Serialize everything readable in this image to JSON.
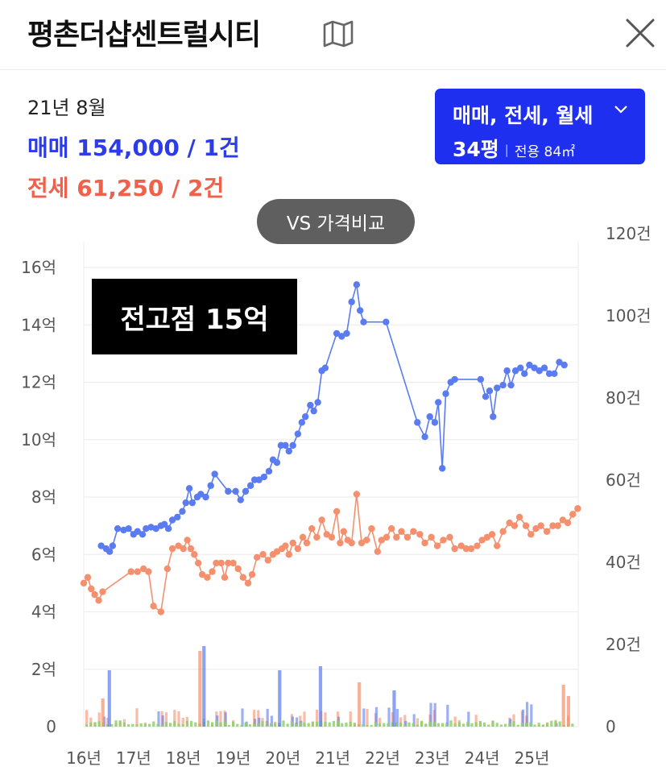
{
  "header": {
    "title": "평촌더샵센트럴시티",
    "map_icon": "map-icon",
    "close_icon": "close-icon"
  },
  "summary": {
    "date": "21년 8월",
    "sale": "매매 154,000 / 1건",
    "jeonse": "전세 61,250 / 2건"
  },
  "filter": {
    "types": "매매, 전세, 월세",
    "size": "34평",
    "separator": "|",
    "area": "전용 84㎡"
  },
  "compare_button": "VS 가격비교",
  "overlay_text": "전고점 15억",
  "colors": {
    "sale": "#5b7cf0",
    "jeonse": "#f5906e",
    "monthly": "#8fd06a",
    "accent": "#1f2ff0"
  },
  "chart_data": {
    "type": "line",
    "x_tick_labels": [
      "16년",
      "17년",
      "18년",
      "19년",
      "20년",
      "21년",
      "22년",
      "23년",
      "24년",
      "25년"
    ],
    "y_left": {
      "ticks": [
        0,
        2,
        4,
        6,
        8,
        10,
        12,
        14,
        16
      ],
      "tick_labels": [
        "0",
        "2억",
        "4억",
        "6억",
        "8억",
        "10억",
        "12억",
        "14억",
        "16억"
      ],
      "range": [
        0,
        16
      ]
    },
    "y_right": {
      "ticks": [
        0,
        20,
        40,
        60,
        80,
        100,
        120
      ],
      "tick_labels": [
        "0",
        "20건",
        "40건",
        "60건",
        "80건",
        "100건",
        "120건"
      ],
      "range": [
        0,
        120
      ]
    },
    "grid": true,
    "series": [
      {
        "key": "sale",
        "axis": "left",
        "points": [
          [
            16.35,
            6.3
          ],
          [
            16.45,
            6.2
          ],
          [
            16.52,
            6.1
          ],
          [
            16.58,
            6.3
          ],
          [
            16.68,
            6.9
          ],
          [
            16.8,
            6.85
          ],
          [
            16.9,
            6.9
          ],
          [
            17.0,
            6.7
          ],
          [
            17.08,
            6.8
          ],
          [
            17.18,
            6.7
          ],
          [
            17.25,
            6.9
          ],
          [
            17.35,
            6.95
          ],
          [
            17.45,
            6.9
          ],
          [
            17.55,
            7.0
          ],
          [
            17.62,
            7.05
          ],
          [
            17.7,
            6.9
          ],
          [
            17.78,
            7.2
          ],
          [
            17.88,
            7.3
          ],
          [
            17.98,
            7.5
          ],
          [
            18.05,
            7.8
          ],
          [
            18.12,
            8.3
          ],
          [
            18.18,
            7.8
          ],
          [
            18.28,
            8.0
          ],
          [
            18.35,
            8.1
          ],
          [
            18.45,
            8.0
          ],
          [
            18.55,
            8.4
          ],
          [
            18.63,
            8.8
          ],
          [
            18.9,
            8.2
          ],
          [
            19.05,
            8.2
          ],
          [
            19.15,
            7.9
          ],
          [
            19.25,
            8.2
          ],
          [
            19.35,
            8.4
          ],
          [
            19.43,
            8.6
          ],
          [
            19.52,
            8.6
          ],
          [
            19.62,
            8.7
          ],
          [
            19.72,
            8.9
          ],
          [
            19.8,
            9.3
          ],
          [
            19.88,
            9.2
          ],
          [
            19.96,
            9.8
          ],
          [
            20.05,
            9.8
          ],
          [
            20.12,
            9.6
          ],
          [
            20.2,
            9.8
          ],
          [
            20.3,
            10.2
          ],
          [
            20.38,
            10.6
          ],
          [
            20.45,
            10.8
          ],
          [
            20.55,
            11.2
          ],
          [
            20.62,
            11.0
          ],
          [
            20.7,
            11.3
          ],
          [
            20.78,
            12.4
          ],
          [
            20.85,
            12.5
          ],
          [
            21.08,
            13.7
          ],
          [
            21.18,
            13.6
          ],
          [
            21.28,
            13.7
          ],
          [
            21.38,
            14.8
          ],
          [
            21.48,
            15.4
          ],
          [
            21.55,
            14.5
          ],
          [
            21.62,
            14.1
          ],
          [
            22.07,
            14.1
          ],
          [
            22.7,
            10.6
          ],
          [
            22.85,
            10.1
          ],
          [
            22.95,
            10.8
          ],
          [
            23.05,
            10.6
          ],
          [
            23.12,
            11.3
          ],
          [
            23.2,
            9.0
          ],
          [
            23.27,
            11.6
          ],
          [
            23.37,
            12.0
          ],
          [
            23.45,
            12.1
          ],
          [
            23.97,
            12.1
          ],
          [
            24.07,
            11.5
          ],
          [
            24.15,
            11.7
          ],
          [
            24.22,
            10.8
          ],
          [
            24.3,
            11.8
          ],
          [
            24.42,
            11.9
          ],
          [
            24.5,
            12.4
          ],
          [
            24.58,
            11.9
          ],
          [
            24.67,
            12.4
          ],
          [
            24.77,
            12.5
          ],
          [
            24.85,
            12.3
          ],
          [
            24.95,
            12.6
          ],
          [
            25.05,
            12.5
          ],
          [
            25.15,
            12.4
          ],
          [
            25.25,
            12.5
          ],
          [
            25.35,
            12.3
          ],
          [
            25.45,
            12.3
          ],
          [
            25.55,
            12.7
          ],
          [
            25.65,
            12.6
          ]
        ]
      },
      {
        "key": "jeonse",
        "axis": "left",
        "points": [
          [
            16.0,
            5.0
          ],
          [
            16.08,
            5.2
          ],
          [
            16.15,
            4.8
          ],
          [
            16.22,
            4.6
          ],
          [
            16.3,
            4.4
          ],
          [
            16.38,
            4.7
          ],
          [
            16.95,
            5.4
          ],
          [
            17.08,
            5.4
          ],
          [
            17.2,
            5.5
          ],
          [
            17.3,
            5.4
          ],
          [
            17.4,
            4.2
          ],
          [
            17.55,
            4.0
          ],
          [
            17.68,
            5.5
          ],
          [
            17.78,
            6.2
          ],
          [
            17.9,
            6.3
          ],
          [
            18.0,
            6.2
          ],
          [
            18.08,
            6.5
          ],
          [
            18.15,
            6.2
          ],
          [
            18.22,
            6.0
          ],
          [
            18.3,
            5.7
          ],
          [
            18.38,
            5.3
          ],
          [
            18.48,
            5.2
          ],
          [
            18.58,
            5.4
          ],
          [
            18.66,
            5.7
          ],
          [
            18.76,
            5.7
          ],
          [
            18.83,
            5.2
          ],
          [
            18.9,
            5.7
          ],
          [
            19.0,
            5.7
          ],
          [
            19.1,
            5.5
          ],
          [
            19.2,
            5.2
          ],
          [
            19.3,
            5.0
          ],
          [
            19.38,
            5.3
          ],
          [
            19.48,
            5.9
          ],
          [
            19.6,
            6.0
          ],
          [
            19.7,
            5.8
          ],
          [
            19.8,
            6.0
          ],
          [
            19.88,
            6.1
          ],
          [
            19.98,
            6.2
          ],
          [
            20.05,
            6.3
          ],
          [
            20.12,
            6.0
          ],
          [
            20.2,
            6.4
          ],
          [
            20.3,
            6.2
          ],
          [
            20.4,
            6.6
          ],
          [
            20.48,
            6.4
          ],
          [
            20.58,
            6.9
          ],
          [
            20.68,
            6.6
          ],
          [
            20.78,
            7.2
          ],
          [
            20.88,
            6.7
          ],
          [
            20.98,
            6.6
          ],
          [
            21.08,
            7.5
          ],
          [
            21.15,
            6.4
          ],
          [
            21.22,
            6.8
          ],
          [
            21.3,
            6.5
          ],
          [
            21.38,
            6.4
          ],
          [
            21.48,
            8.1
          ],
          [
            21.58,
            6.4
          ],
          [
            21.68,
            6.5
          ],
          [
            21.78,
            6.9
          ],
          [
            21.9,
            6.1
          ],
          [
            21.98,
            6.5
          ],
          [
            22.08,
            6.6
          ],
          [
            22.18,
            6.9
          ],
          [
            22.28,
            6.6
          ],
          [
            22.38,
            6.8
          ],
          [
            22.5,
            6.6
          ],
          [
            22.62,
            6.8
          ],
          [
            22.75,
            6.7
          ],
          [
            22.85,
            6.4
          ],
          [
            22.98,
            6.6
          ],
          [
            23.1,
            6.3
          ],
          [
            23.22,
            6.5
          ],
          [
            23.35,
            6.6
          ],
          [
            23.45,
            6.2
          ],
          [
            23.58,
            6.3
          ],
          [
            23.68,
            6.2
          ],
          [
            23.78,
            6.2
          ],
          [
            23.9,
            6.3
          ],
          [
            24.0,
            6.5
          ],
          [
            24.1,
            6.6
          ],
          [
            24.2,
            6.7
          ],
          [
            24.3,
            6.3
          ],
          [
            24.42,
            6.8
          ],
          [
            24.55,
            7.1
          ],
          [
            24.65,
            7.0
          ],
          [
            24.75,
            7.3
          ],
          [
            24.88,
            7.0
          ],
          [
            24.98,
            6.7
          ],
          [
            25.08,
            6.9
          ],
          [
            25.18,
            7.0
          ],
          [
            25.3,
            6.8
          ],
          [
            25.42,
            7.0
          ],
          [
            25.52,
            7.0
          ],
          [
            25.62,
            7.2
          ],
          [
            25.72,
            7.1
          ],
          [
            25.82,
            7.4
          ],
          [
            25.92,
            7.6
          ]
        ]
      }
    ]
  }
}
